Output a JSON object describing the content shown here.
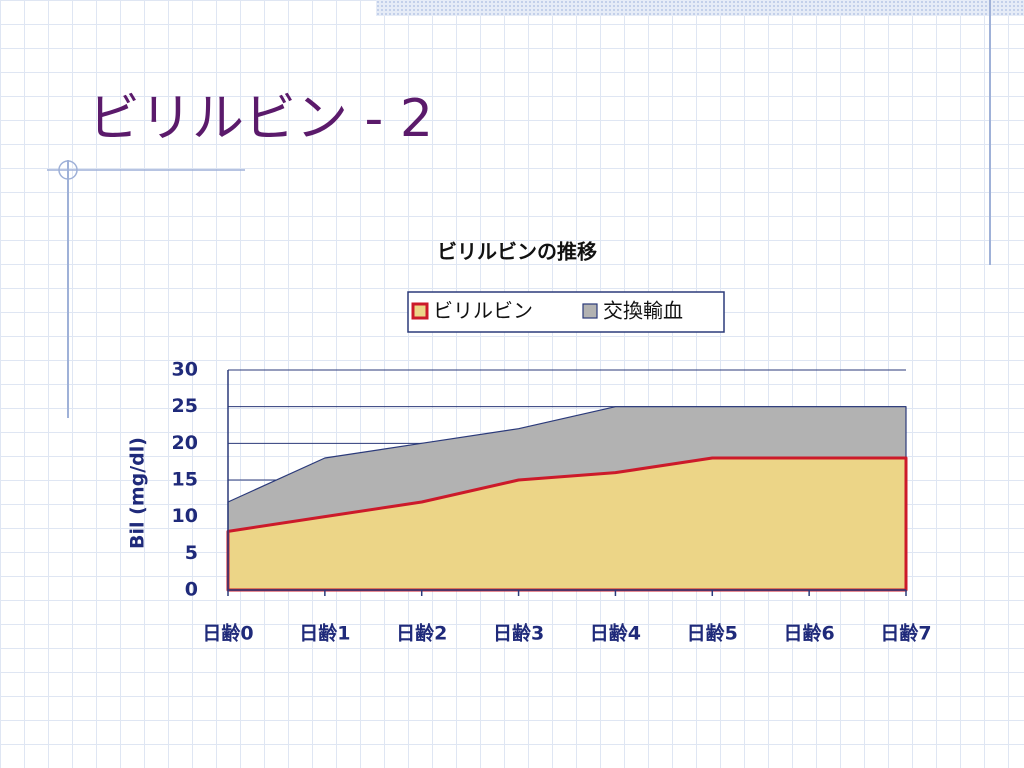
{
  "slide": {
    "title": "ビリルビン - 2"
  },
  "chart_data": {
    "type": "area",
    "title": "ビリルビンの推移",
    "ylabel": "Bil (mg/dl)",
    "categories": [
      "日齢0",
      "日齢1",
      "日齢2",
      "日齢3",
      "日齢4",
      "日齢5",
      "日齢6",
      "日齢7"
    ],
    "series": [
      {
        "name": "ビリルビン",
        "color": "#ecd587",
        "line_color": "#cc1a2a",
        "values": [
          8,
          10,
          12,
          15,
          16,
          18,
          18,
          18
        ]
      },
      {
        "name": "交換輸血",
        "color": "#b2b2b2",
        "line_color": "#2b3a7a",
        "values": [
          12,
          18,
          20,
          22,
          25,
          25,
          25,
          25
        ]
      }
    ],
    "ylim": [
      0,
      30
    ],
    "yticks": [
      0,
      5,
      10,
      15,
      20,
      25,
      30
    ],
    "grid": true,
    "legend": "top"
  }
}
